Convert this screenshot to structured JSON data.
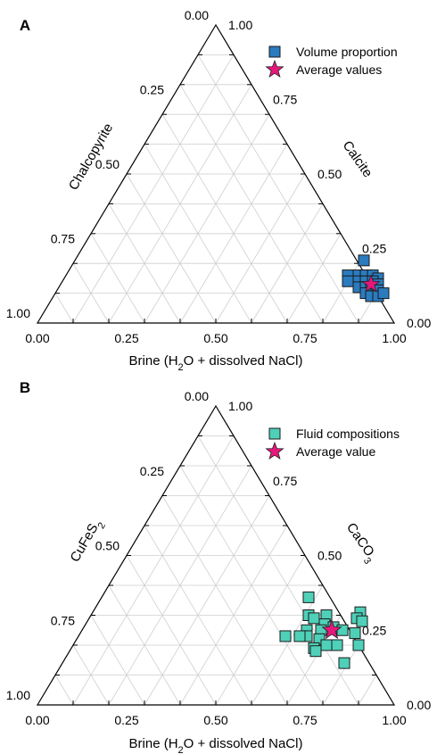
{
  "chart_data": [
    {
      "type": "scatter",
      "subtype": "ternary",
      "panel_label": "A",
      "axis_left_label": "Chalcopyrite",
      "axis_right_label": "Calcite",
      "axis_bottom_label": "Brine (H2O + dissolved NaCl)",
      "ticks_bottom": [
        "0.00",
        "0.25",
        "0.50",
        "0.75",
        "1.00"
      ],
      "ticks_left": [
        "0.00",
        "0.25",
        "0.50",
        "0.75",
        "1.00"
      ],
      "ticks_right": [
        "1.00",
        "0.75",
        "0.50",
        "0.25",
        "0.00"
      ],
      "grid": true,
      "legend_position": "top-right",
      "point_color": "#2b7bbf",
      "average_color": "#e5177a",
      "series": [
        {
          "name": "Volume proportion",
          "marker": "square",
          "points": [
            {
              "brine": 0.81,
              "calcite": 0.21
            },
            {
              "brine": 0.79,
              "calcite": 0.16
            },
            {
              "brine": 0.82,
              "calcite": 0.16
            },
            {
              "brine": 0.84,
              "calcite": 0.16
            },
            {
              "brine": 0.86,
              "calcite": 0.16
            },
            {
              "brine": 0.88,
              "calcite": 0.15
            },
            {
              "brine": 0.8,
              "calcite": 0.14
            },
            {
              "brine": 0.83,
              "calcite": 0.14
            },
            {
              "brine": 0.85,
              "calcite": 0.14
            },
            {
              "brine": 0.87,
              "calcite": 0.14
            },
            {
              "brine": 0.89,
              "calcite": 0.13
            },
            {
              "brine": 0.84,
              "calcite": 0.12
            },
            {
              "brine": 0.86,
              "calcite": 0.12
            },
            {
              "brine": 0.88,
              "calcite": 0.11
            },
            {
              "brine": 0.9,
              "calcite": 0.11
            },
            {
              "brine": 0.87,
              "calcite": 0.1
            },
            {
              "brine": 0.89,
              "calcite": 0.09
            },
            {
              "brine": 0.91,
              "calcite": 0.09
            },
            {
              "brine": 0.92,
              "calcite": 0.1
            }
          ]
        },
        {
          "name": "Average values",
          "marker": "star",
          "points": [
            {
              "brine": 0.87,
              "calcite": 0.13
            }
          ]
        }
      ]
    },
    {
      "type": "scatter",
      "subtype": "ternary",
      "panel_label": "B",
      "axis_left_label": "CuFeS2",
      "axis_right_label": "CaCO3",
      "axis_bottom_label": "Brine (H2O + dissolved NaCl)",
      "ticks_bottom": [
        "0.00",
        "0.25",
        "0.50",
        "0.75",
        "1.00"
      ],
      "ticks_left": [
        "0.00",
        "0.25",
        "0.50",
        "0.75",
        "1.00"
      ],
      "ticks_right": [
        "1.00",
        "0.75",
        "0.50",
        "0.25",
        "0.00"
      ],
      "grid": true,
      "legend_position": "top-right",
      "point_color": "#4fd0b8",
      "average_color": "#e5177a",
      "series": [
        {
          "name": "Fluid compositions",
          "marker": "square",
          "points": [
            {
              "brine": 0.58,
              "calcite": 0.36
            },
            {
              "brine": 0.61,
              "calcite": 0.3
            },
            {
              "brine": 0.66,
              "calcite": 0.3
            },
            {
              "brine": 0.75,
              "calcite": 0.31
            },
            {
              "brine": 0.75,
              "calcite": 0.29
            },
            {
              "brine": 0.77,
              "calcite": 0.28
            },
            {
              "brine": 0.63,
              "calcite": 0.29
            },
            {
              "brine": 0.67,
              "calcite": 0.27
            },
            {
              "brine": 0.7,
              "calcite": 0.26
            },
            {
              "brine": 0.63,
              "calcite": 0.25
            },
            {
              "brine": 0.67,
              "calcite": 0.25
            },
            {
              "brine": 0.73,
              "calcite": 0.25
            },
            {
              "brine": 0.64,
              "calcite": 0.23
            },
            {
              "brine": 0.68,
              "calcite": 0.22
            },
            {
              "brine": 0.58,
              "calcite": 0.23
            },
            {
              "brine": 0.62,
              "calcite": 0.23
            },
            {
              "brine": 0.71,
              "calcite": 0.2
            },
            {
              "brine": 0.74,
              "calcite": 0.2
            },
            {
              "brine": 0.68,
              "calcite": 0.19
            },
            {
              "brine": 0.69,
              "calcite": 0.18
            },
            {
              "brine": 0.8,
              "calcite": 0.2
            },
            {
              "brine": 0.77,
              "calcite": 0.24
            },
            {
              "brine": 0.79,
              "calcite": 0.14
            }
          ]
        },
        {
          "name": "Average value",
          "marker": "star",
          "points": [
            {
              "brine": 0.7,
              "calcite": 0.25
            }
          ]
        }
      ]
    }
  ]
}
